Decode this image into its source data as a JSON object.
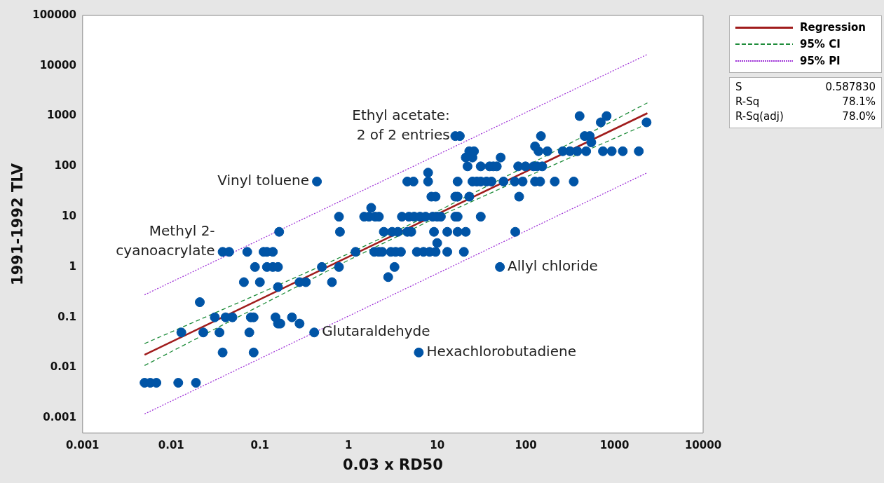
{
  "chart_data": {
    "type": "scatter",
    "xlabel": "0.03 x RD50",
    "ylabel": "1991-1992 TLV",
    "log": "xy",
    "grid": false,
    "legend": "top right",
    "xlim": [
      0.001,
      10000
    ],
    "xticks": [
      0.001,
      0.01,
      0.1,
      1,
      10,
      100,
      1000,
      10000
    ],
    "ylim": [
      0.0005,
      100000
    ],
    "yticks": [
      0.001,
      0.01,
      0.1,
      1,
      10,
      100,
      1000,
      10000,
      100000
    ],
    "series": [
      {
        "marker": "circle",
        "color": "#0054a6",
        "x": [
          0.005,
          0.0058,
          0.0068,
          0.012,
          0.019,
          0.038,
          0.085,
          6.2,
          0.013,
          0.023,
          0.035,
          0.076,
          0.41,
          0.16,
          0.17,
          0.28,
          0.031,
          0.041,
          0.049,
          0.079,
          0.085,
          0.15,
          0.23,
          0.021,
          0.16,
          0.066,
          0.1,
          0.28,
          0.33,
          0.65,
          2.8,
          0.088,
          0.12,
          0.14,
          0.16,
          0.5,
          0.78,
          3.3,
          51,
          0.038,
          0.045,
          0.072,
          0.11,
          0.12,
          0.14,
          1.2,
          1.95,
          2.2,
          2.4,
          3,
          3.4,
          3.9,
          5.9,
          7,
          8.2,
          9.6,
          13,
          20,
          10,
          0.165,
          0.8,
          2.5,
          3.1,
          3.6,
          4.6,
          5.1,
          9.2,
          13,
          17,
          21,
          76,
          0.78,
          1.5,
          1.7,
          2,
          2.2,
          4,
          4.8,
          5.5,
          6.4,
          7.4,
          8.9,
          10,
          11,
          16,
          17,
          31,
          1.8,
          8.6,
          9.6,
          16,
          17,
          23,
          84,
          0.44,
          4.6,
          5.4,
          7.9,
          17,
          25,
          28,
          31,
          36,
          41,
          56,
          75,
          92,
          127,
          145,
          212,
          347,
          7.9,
          22,
          31,
          39,
          43,
          47,
          82,
          99,
          122,
          134,
          153,
          21,
          25,
          52,
          23,
          26,
          139,
          175,
          261,
          315,
          381,
          479,
          741,
          931,
          1240,
          1880,
          127,
          547,
          16,
          18,
          148,
          461,
          526,
          700,
          2300,
          404,
          815
        ],
        "values": [
          0.005,
          0.005,
          0.005,
          0.005,
          0.005,
          0.02,
          0.02,
          0.02,
          0.05,
          0.05,
          0.05,
          0.05,
          0.05,
          0.075,
          0.075,
          0.075,
          0.1,
          0.1,
          0.1,
          0.1,
          0.1,
          0.1,
          0.1,
          0.2,
          0.4,
          0.5,
          0.5,
          0.5,
          0.5,
          0.5,
          0.63,
          1,
          1,
          1,
          1,
          1,
          1,
          1,
          1,
          2,
          2,
          2,
          2,
          2,
          2,
          2,
          2,
          2,
          2,
          2,
          2,
          2,
          2,
          2,
          2,
          2,
          2,
          2,
          3,
          5,
          5,
          5,
          5,
          5,
          5,
          5,
          5,
          5,
          5,
          5,
          5,
          10,
          10,
          10,
          10,
          10,
          10,
          10,
          10,
          10,
          10,
          10,
          10,
          10,
          10,
          10,
          10,
          15,
          25,
          25,
          25,
          25,
          25,
          25,
          50,
          50,
          50,
          50,
          50,
          50,
          50,
          50,
          50,
          50,
          50,
          50,
          50,
          50,
          50,
          50,
          50,
          75,
          100,
          100,
          100,
          100,
          100,
          100,
          100,
          100,
          100,
          100,
          150,
          150,
          150,
          200,
          200,
          200,
          200,
          200,
          200,
          200,
          200,
          200,
          200,
          200,
          200,
          250,
          300,
          400,
          400,
          400,
          400,
          400,
          750,
          750,
          1000,
          1000
        ]
      },
      {
        "type": "line",
        "name": "Regression",
        "color": "#a01c1c",
        "line_style": "solid",
        "marker": "none",
        "x": [
          0.005,
          2350
        ],
        "values": [
          0.018,
          1140
        ]
      },
      {
        "type": "line",
        "name": "95% CI",
        "color": "#1e8c3a",
        "line_style": "dashed",
        "marker": "none",
        "x": [
          0.005,
          0.1,
          1,
          10,
          100,
          2350
        ],
        "values": [
          0.03,
          0.3,
          1.84,
          12.7,
          100,
          1830
        ]
      },
      {
        "type": "line",
        "color": "#1e8c3a",
        "line_style": "dashed",
        "marker": "none",
        "x": [
          0.005,
          0.1,
          1,
          10,
          100,
          2350
        ],
        "values": [
          0.011,
          0.17,
          1.37,
          9.8,
          61,
          700
        ]
      },
      {
        "type": "line",
        "name": "95% PI",
        "color": "#a035d8",
        "line_style": "dotted",
        "marker": "none",
        "x": [
          0.005,
          2350
        ],
        "values": [
          0.28,
          16800
        ]
      },
      {
        "type": "line",
        "color": "#a035d8",
        "line_style": "dotted",
        "marker": "none",
        "x": [
          0.005,
          2350
        ],
        "values": [
          0.0012,
          75
        ]
      }
    ],
    "annotations": [
      {
        "text": "Ethyl acetate:\n2 of 2 entries",
        "x": 17,
        "y": 400
      },
      {
        "text": "Vinyl toluene",
        "x": 0.44,
        "y": 50
      },
      {
        "text": "Methyl 2-\ncyanoacrylate",
        "x": 0.038,
        "y": 2
      },
      {
        "text": "Allyl chloride",
        "x": 51,
        "y": 1
      },
      {
        "text": "Glutaraldehyde",
        "x": 0.41,
        "y": 0.05
      },
      {
        "text": "Hexachlorobutadiene",
        "x": 6.2,
        "y": 0.02
      },
      "S 0.587830",
      "R-Sq 78.1%",
      "R-Sq(adj) 78.0%"
    ]
  }
}
